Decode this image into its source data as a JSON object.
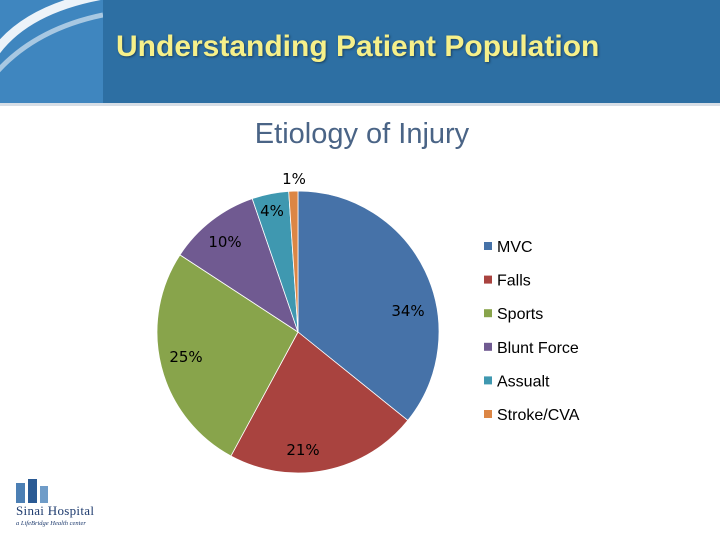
{
  "slide": {
    "title": "Understanding Patient Population"
  },
  "logo": {
    "name": "Sinai Hospital",
    "tagline": "a LifeBridge Health center"
  },
  "colors": {
    "header": "#2d6fa3",
    "title_text": "#f6f08a"
  },
  "chart_data": {
    "type": "pie",
    "title": "Etiology of Injury",
    "slices": [
      {
        "name": "MVC",
        "value": 34,
        "label": "34%",
        "color": "#4672a8"
      },
      {
        "name": "Falls",
        "value": 21,
        "label": "21%",
        "color": "#a9433f"
      },
      {
        "name": "Sports",
        "value": 25,
        "label": "25%",
        "color": "#88a44b"
      },
      {
        "name": "Blunt Force",
        "value": 10,
        "label": "10%",
        "color": "#705a91"
      },
      {
        "name": "Assualt",
        "value": 4,
        "label": "4%",
        "color": "#3f98b0"
      },
      {
        "name": "Stroke/CVA",
        "value": 1,
        "label": "1%",
        "color": "#dc8645"
      }
    ],
    "legend_position": "right"
  }
}
